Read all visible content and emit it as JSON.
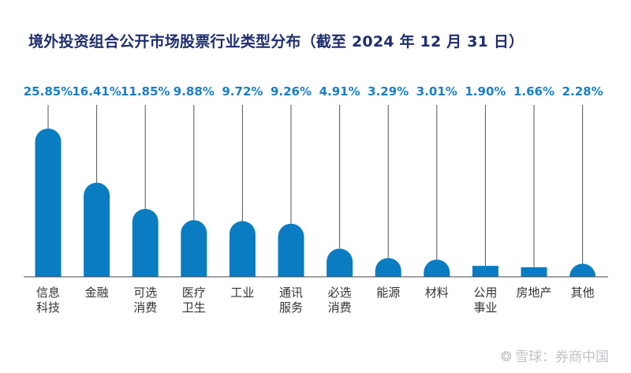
{
  "chart_data": {
    "type": "bar",
    "title": "境外投资组合公开市场股票行业类型分布（截至 2024 年 12 月 31 日）",
    "categories": [
      [
        "信息",
        "科技"
      ],
      [
        "金融"
      ],
      [
        "可选",
        "消费"
      ],
      [
        "医疗",
        "卫生"
      ],
      [
        "工业"
      ],
      [
        "通讯",
        "服务"
      ],
      [
        "必选",
        "消费"
      ],
      [
        "能源"
      ],
      [
        "材料"
      ],
      [
        "公用",
        "事业"
      ],
      [
        "房地产"
      ],
      [
        "其他"
      ]
    ],
    "values": [
      25.85,
      16.41,
      11.85,
      9.88,
      9.72,
      9.26,
      4.91,
      3.29,
      3.01,
      1.9,
      1.66,
      2.28
    ],
    "value_labels": [
      "25.85%",
      "16.41%",
      "11.85%",
      "9.88%",
      "9.72%",
      "9.26%",
      "4.91%",
      "3.29%",
      "3.01%",
      "1.90%",
      "1.66%",
      "2.28%"
    ],
    "unit": "%",
    "bar_color": "#0a7cc1",
    "label_color": "#1a7fc5",
    "title_color": "#1f2e6e"
  },
  "watermark": "雪球：券商中国"
}
